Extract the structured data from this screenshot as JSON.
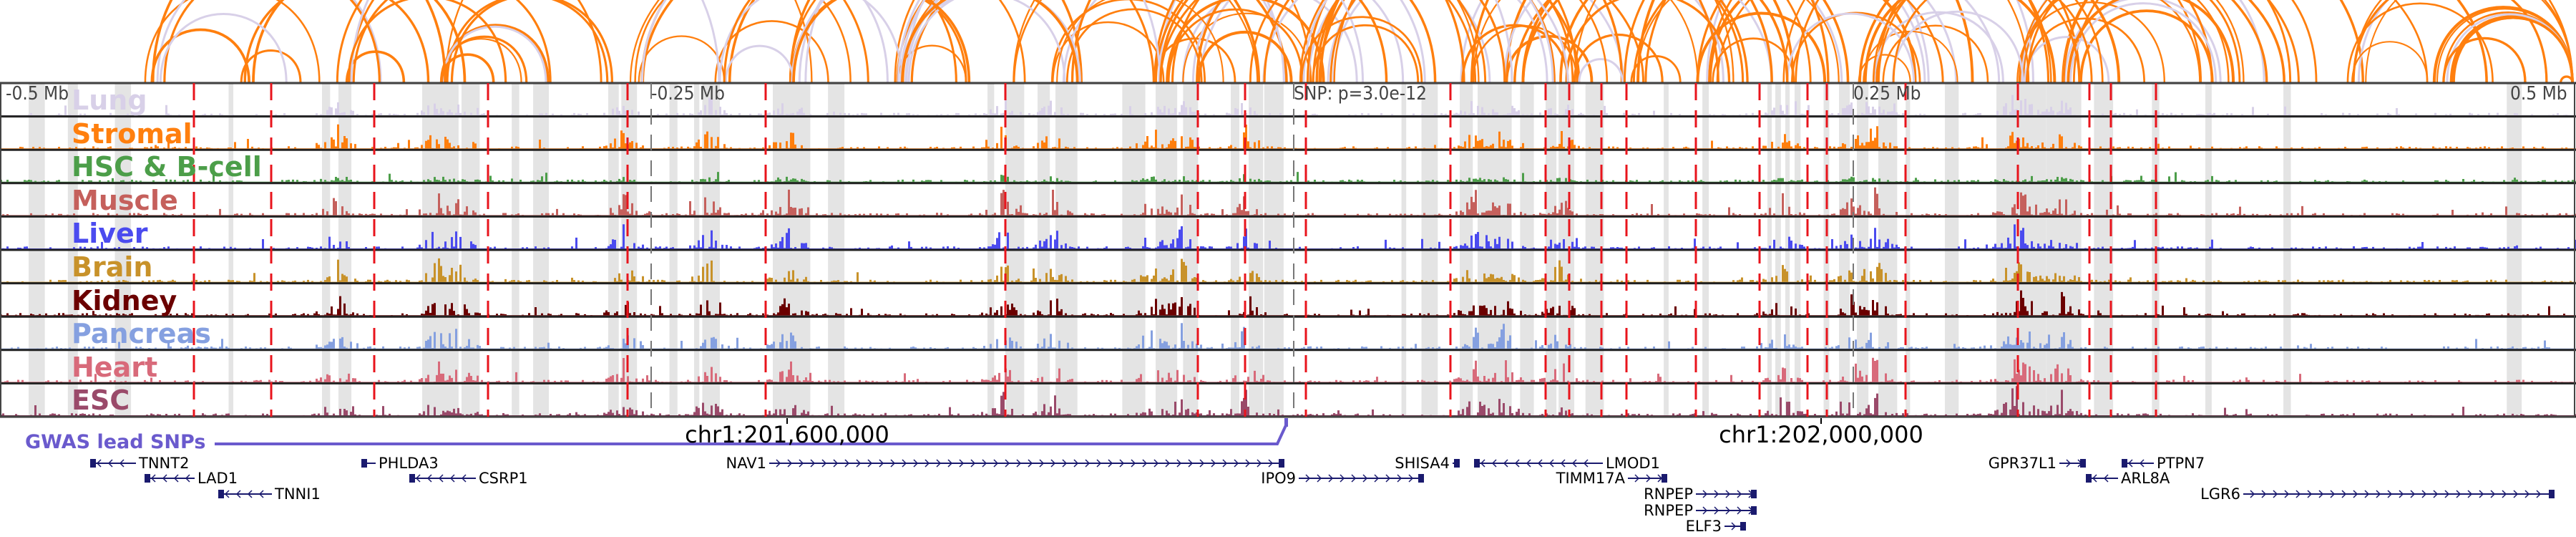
{
  "axis": {
    "left": "-0.5 Mb",
    "mid_left": "-0.25 Mb",
    "snp": "SNP: p=3.0e-12",
    "mid_right": "0.25 Mb",
    "right": "0.5 Mb"
  },
  "coords": {
    "left": "chr1:201,600,000",
    "right": "chr1:202,000,000"
  },
  "gwas_label": "GWAS lead SNPs",
  "colors": {
    "arc_main": "#ff7f0e",
    "arc_alt": "#d8d0e8",
    "snp_line": "#e8141c",
    "gwas": "#6a5acd",
    "gene": "#1a1a6e",
    "band": "#e4e4e4"
  },
  "tracks": [
    {
      "label": "Lung",
      "color": "#d8d0e8"
    },
    {
      "label": "Stromal",
      "color": "#ff7f0e"
    },
    {
      "label": "HSC & B-cell",
      "color": "#4c9e49"
    },
    {
      "label": "Muscle",
      "color": "#c5605c"
    },
    {
      "label": "Liver",
      "color": "#4b4bef"
    },
    {
      "label": "Brain",
      "color": "#c8922a"
    },
    {
      "label": "Kidney",
      "color": "#6b0000"
    },
    {
      "label": "Pancreas",
      "color": "#85a0e0"
    },
    {
      "label": "Heart",
      "color": "#d86a7a"
    },
    {
      "label": "ESC",
      "color": "#9a4a6a"
    }
  ],
  "genes": [
    "TNNT2",
    "LAD1",
    "TNNI1",
    "PHLDA3",
    "CSRP1",
    "NAV1",
    "IPO9",
    "SHISA4",
    "LMOD1",
    "TIMM17A",
    "RNPEP",
    "RNPEP",
    "ELF3",
    "GPR37L1",
    "PTPN7",
    "ARL8A",
    "LGR6"
  ]
}
